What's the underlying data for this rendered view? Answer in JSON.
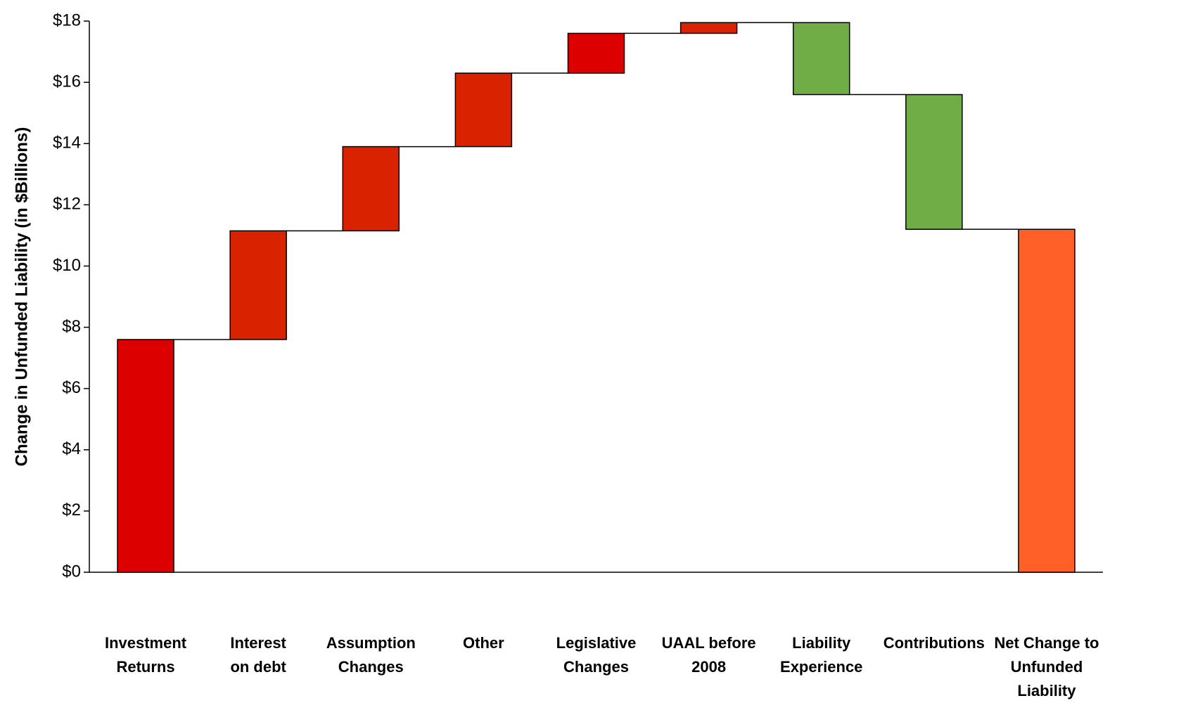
{
  "chart_data": {
    "type": "waterfall",
    "y_label": "Change in Unfunded Liability (in  $Billions)",
    "categories": [
      "Investment Returns",
      "Interest on debt",
      "Assumption Changes",
      "Other",
      "Legislative Changes",
      "UAAL before 2008",
      "Liability Experience",
      "Contributions",
      "Net Change to Unfunded Liability"
    ],
    "values": [
      7.6,
      3.55,
      2.75,
      2.4,
      1.3,
      0.35,
      -2.35,
      -4.4,
      11.2
    ],
    "measure": [
      "relative",
      "relative",
      "relative",
      "relative",
      "relative",
      "relative",
      "relative",
      "relative",
      "total"
    ],
    "colors": [
      "#dd0000",
      "#d92200",
      "#d92200",
      "#d92200",
      "#dd0000",
      "#d92200",
      "#70ad47",
      "#70ad47",
      "#ff6028"
    ],
    "ylim": [
      0,
      18
    ],
    "yticks": [
      {
        "value": 0,
        "label": "$0"
      },
      {
        "value": 2,
        "label": "$2"
      },
      {
        "value": 4,
        "label": "$4"
      },
      {
        "value": 6,
        "label": "$6"
      },
      {
        "value": 8,
        "label": "$8"
      },
      {
        "value": 10,
        "label": "$10"
      },
      {
        "value": 12,
        "label": "$12"
      },
      {
        "value": 14,
        "label": "$14"
      },
      {
        "value": 16,
        "label": "$16"
      },
      {
        "value": 18,
        "label": "$18"
      }
    ]
  }
}
